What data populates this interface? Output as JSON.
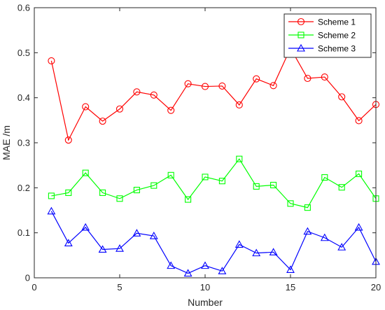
{
  "chart_data": {
    "type": "line",
    "xlabel": "Number",
    "ylabel": "MAE /m",
    "xlim": [
      0,
      20
    ],
    "ylim": [
      0,
      0.6
    ],
    "xticks": [
      0,
      5,
      10,
      15,
      20
    ],
    "yticks": [
      0,
      0.1,
      0.2,
      0.3,
      0.4,
      0.5,
      0.6
    ],
    "xtick_labels": [
      "0",
      "5",
      "10",
      "15",
      "20"
    ],
    "ytick_labels": [
      "0",
      "0.1",
      "0.2",
      "0.3",
      "0.4",
      "0.5",
      "0.6"
    ],
    "grid": false,
    "legend_position": "top-right",
    "x": [
      1,
      2,
      3,
      4,
      5,
      6,
      7,
      8,
      9,
      10,
      11,
      12,
      13,
      14,
      15,
      16,
      17,
      18,
      19,
      20
    ],
    "series": [
      {
        "name": "Scheme 1",
        "color": "#ff0000",
        "marker": "circle",
        "values": [
          0.482,
          0.306,
          0.38,
          0.348,
          0.375,
          0.413,
          0.406,
          0.372,
          0.431,
          0.425,
          0.426,
          0.384,
          0.442,
          0.427,
          0.51,
          0.443,
          0.446,
          0.402,
          0.349,
          0.385
        ]
      },
      {
        "name": "Scheme 2",
        "color": "#00ff00",
        "marker": "square",
        "values": [
          0.182,
          0.189,
          0.233,
          0.189,
          0.176,
          0.195,
          0.205,
          0.228,
          0.174,
          0.224,
          0.215,
          0.264,
          0.203,
          0.206,
          0.165,
          0.156,
          0.223,
          0.201,
          0.231,
          0.176
        ]
      },
      {
        "name": "Scheme 3",
        "color": "#0000ff",
        "marker": "triangle",
        "values": [
          0.148,
          0.077,
          0.112,
          0.063,
          0.065,
          0.099,
          0.093,
          0.027,
          0.01,
          0.027,
          0.015,
          0.074,
          0.055,
          0.057,
          0.018,
          0.103,
          0.089,
          0.068,
          0.112,
          0.036
        ]
      }
    ]
  }
}
